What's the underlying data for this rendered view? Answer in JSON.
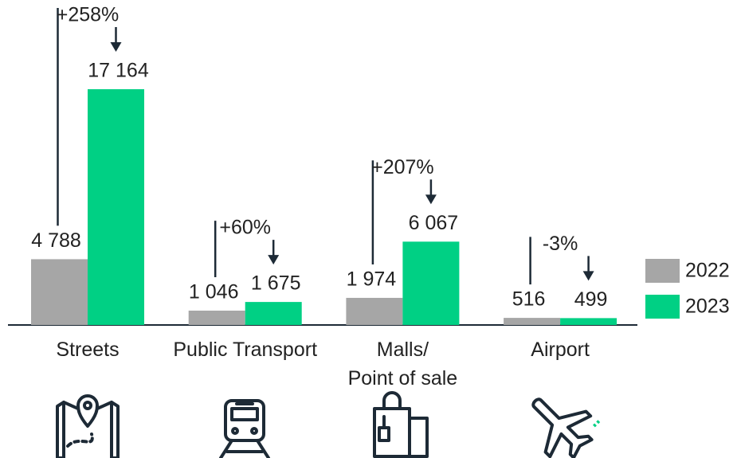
{
  "chart_data": {
    "type": "bar",
    "categories": [
      "Streets",
      "Public Transport",
      "Malls/\nPoint of sale",
      "Airport"
    ],
    "series": [
      {
        "name": "2022",
        "color": "#a6a6a6",
        "values": [
          4788,
          1046,
          1974,
          516
        ],
        "value_labels": [
          "4 788",
          "1 046",
          "1 974",
          "516"
        ]
      },
      {
        "name": "2023",
        "color": "#00d084",
        "values": [
          17164,
          1675,
          6067,
          499
        ],
        "value_labels": [
          "17 164",
          "1 675",
          "6 067",
          "499"
        ]
      }
    ],
    "annotations": [
      "+258%",
      "+60%",
      "+207%",
      "-3%"
    ],
    "legend": "right"
  }
}
